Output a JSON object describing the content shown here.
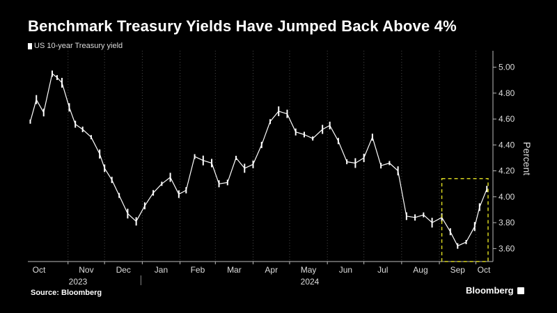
{
  "header": {
    "title": "Benchmark Treasury Yields Have Jumped Back Above 4%",
    "legend_label": "US 10-year Treasury yield"
  },
  "footer": {
    "source": "Source: Bloomberg",
    "brand": "Bloomberg"
  },
  "colors": {
    "background": "#000000",
    "series": "#ffffff",
    "grid": "#4a4a4a",
    "highlight_box": "#d7d51f"
  },
  "chart_data": {
    "type": "line",
    "ylabel": "Percent",
    "xlabel": "",
    "ylim": [
      3.5,
      5.1
    ],
    "y_ticks": [
      "5.00",
      "4.80",
      "4.60",
      "4.40",
      "4.20",
      "4.00",
      "3.80",
      "3.60"
    ],
    "y_tick_values": [
      5.0,
      4.8,
      4.6,
      4.4,
      4.2,
      4.0,
      3.8,
      3.6
    ],
    "x_months": [
      "Oct",
      "Nov",
      "Dec",
      "Jan",
      "Feb",
      "Mar",
      "Apr",
      "May",
      "Jun",
      "Jul",
      "Aug",
      "Sep",
      "Oct"
    ],
    "x_years": [
      "2023",
      "2024"
    ],
    "grid": "dotted vertical",
    "legend_placement": "top-left",
    "highlight": {
      "from": "2024-09-03",
      "to": "2024-10-11",
      "y_range": [
        3.5,
        4.14
      ],
      "style": "dashed"
    },
    "series": [
      {
        "name": "US 10-year Treasury yield",
        "x": [
          "2023-10-01",
          "2023-10-06",
          "2023-10-12",
          "2023-10-19",
          "2023-10-23",
          "2023-10-27",
          "2023-11-02",
          "2023-11-07",
          "2023-11-13",
          "2023-11-20",
          "2023-11-27",
          "2023-12-01",
          "2023-12-07",
          "2023-12-13",
          "2023-12-20",
          "2023-12-27",
          "2024-01-03",
          "2024-01-10",
          "2024-01-17",
          "2024-01-24",
          "2024-01-31",
          "2024-02-06",
          "2024-02-13",
          "2024-02-20",
          "2024-02-27",
          "2024-03-04",
          "2024-03-11",
          "2024-03-18",
          "2024-03-25",
          "2024-04-01",
          "2024-04-08",
          "2024-04-15",
          "2024-04-22",
          "2024-04-29",
          "2024-05-06",
          "2024-05-13",
          "2024-05-20",
          "2024-05-28",
          "2024-06-03",
          "2024-06-10",
          "2024-06-17",
          "2024-06-24",
          "2024-07-01",
          "2024-07-08",
          "2024-07-15",
          "2024-07-22",
          "2024-07-29",
          "2024-08-05",
          "2024-08-12",
          "2024-08-19",
          "2024-08-26",
          "2024-09-03",
          "2024-09-10",
          "2024-09-16",
          "2024-09-23",
          "2024-09-30",
          "2024-10-04",
          "2024-10-10"
        ],
        "values": [
          4.58,
          4.75,
          4.65,
          4.95,
          4.92,
          4.88,
          4.69,
          4.56,
          4.52,
          4.46,
          4.33,
          4.22,
          4.13,
          4.01,
          3.87,
          3.81,
          3.93,
          4.03,
          4.1,
          4.15,
          4.02,
          4.05,
          4.31,
          4.28,
          4.26,
          4.1,
          4.11,
          4.3,
          4.22,
          4.25,
          4.4,
          4.58,
          4.66,
          4.64,
          4.5,
          4.48,
          4.45,
          4.52,
          4.55,
          4.43,
          4.27,
          4.26,
          4.3,
          4.46,
          4.24,
          4.26,
          4.2,
          3.85,
          3.84,
          3.86,
          3.8,
          3.84,
          3.73,
          3.62,
          3.65,
          3.77,
          3.92,
          4.06
        ]
      }
    ]
  }
}
